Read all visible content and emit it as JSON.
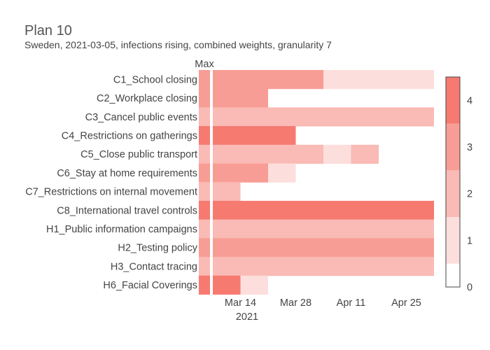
{
  "chart_data": {
    "type": "heatmap",
    "title": "Plan 10",
    "subtitle": "Sweden, 2021-03-05, infections rising, combined weights, granularity 7",
    "max_column_label": "Max",
    "x_ticks": [
      "Mar 14",
      "Mar 28",
      "Apr 11",
      "Apr 25"
    ],
    "x_tick_dates": [
      "2021-03-14",
      "2021-03-28",
      "2021-04-11",
      "2021-04-25"
    ],
    "x_year_label": "2021",
    "x_range": [
      "2021-03-07",
      "2021-05-02"
    ],
    "colorscale": {
      "min": 0,
      "max": 4.5,
      "ticks": [
        "0",
        "1",
        "2",
        "3",
        "4"
      ],
      "colors": [
        "#ffffff",
        "#fcdedc",
        "#fabab5",
        "#f89d95",
        "#f67a70"
      ]
    },
    "rows": [
      {
        "label": "C1_School closing",
        "max": 3,
        "segments": [
          {
            "start": "2021-03-07",
            "end": "2021-04-04",
            "level": 3
          },
          {
            "start": "2021-04-04",
            "end": "2021-05-02",
            "level": 1
          }
        ]
      },
      {
        "label": "C2_Workplace closing",
        "max": 3,
        "segments": [
          {
            "start": "2021-03-07",
            "end": "2021-03-21",
            "level": 3
          }
        ]
      },
      {
        "label": "C3_Cancel public events",
        "max": 2,
        "segments": [
          {
            "start": "2021-03-07",
            "end": "2021-05-02",
            "level": 2
          }
        ]
      },
      {
        "label": "C4_Restrictions on gatherings",
        "max": 4,
        "segments": [
          {
            "start": "2021-03-07",
            "end": "2021-03-28",
            "level": 4
          }
        ]
      },
      {
        "label": "C5_Close public transport",
        "max": 2,
        "segments": [
          {
            "start": "2021-03-07",
            "end": "2021-03-35",
            "level": 2
          },
          {
            "start": "2021-04-04",
            "end": "2021-04-11",
            "level": 1
          },
          {
            "start": "2021-04-11",
            "end": "2021-04-18",
            "level": 2
          }
        ]
      },
      {
        "label": "C6_Stay at home requirements",
        "max": 3,
        "segments": [
          {
            "start": "2021-03-07",
            "end": "2021-03-21",
            "level": 3
          },
          {
            "start": "2021-03-21",
            "end": "2021-03-28",
            "level": 1
          }
        ]
      },
      {
        "label": "C7_Restrictions on internal movement",
        "max": 2,
        "segments": [
          {
            "start": "2021-03-07",
            "end": "2021-03-14",
            "level": 2
          }
        ]
      },
      {
        "label": "C8_International travel controls",
        "max": 4,
        "segments": [
          {
            "start": "2021-03-07",
            "end": "2021-05-02",
            "level": 4
          }
        ]
      },
      {
        "label": "H1_Public information campaigns",
        "max": 2,
        "segments": [
          {
            "start": "2021-03-07",
            "end": "2021-05-02",
            "level": 2
          }
        ]
      },
      {
        "label": "H2_Testing policy",
        "max": 3,
        "segments": [
          {
            "start": "2021-03-07",
            "end": "2021-05-02",
            "level": 3
          }
        ]
      },
      {
        "label": "H3_Contact tracing",
        "max": 2,
        "segments": [
          {
            "start": "2021-03-07",
            "end": "2021-05-02",
            "level": 2
          }
        ]
      },
      {
        "label": "H6_Facial Coverings",
        "max": 4,
        "segments": [
          {
            "start": "2021-03-07",
            "end": "2021-03-14",
            "level": 4
          },
          {
            "start": "2021-03-14",
            "end": "2021-03-21",
            "level": 1
          }
        ]
      }
    ]
  }
}
